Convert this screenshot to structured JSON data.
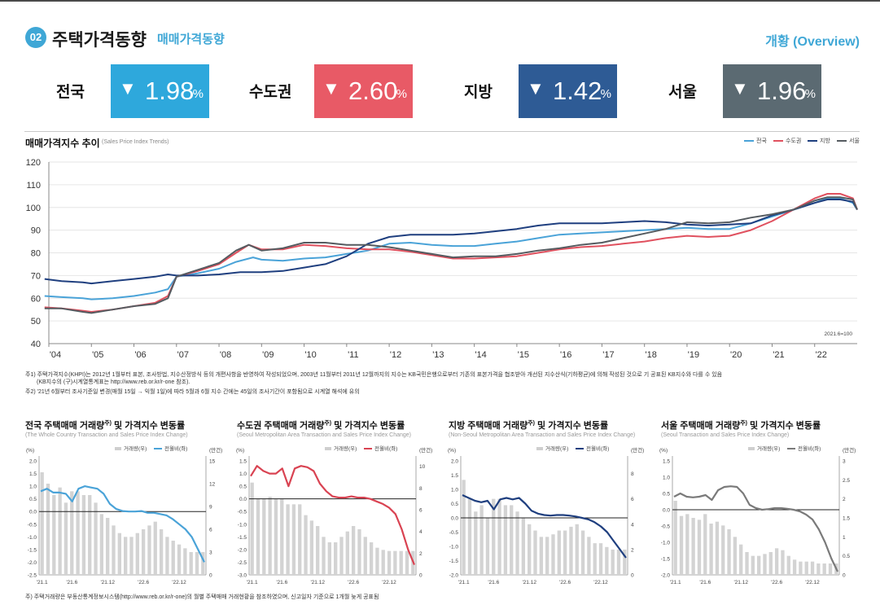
{
  "header": {
    "badge": "02",
    "title": "주택가격동향",
    "subtitle": "매매가격동향",
    "overview": "개황 (Overview)"
  },
  "kpis": [
    {
      "label": "전국",
      "arrow": "▼",
      "value": "1.98",
      "unit": "%",
      "color": "#2ea8dc"
    },
    {
      "label": "수도권",
      "arrow": "▼",
      "value": "2.60",
      "unit": "%",
      "color": "#e85a66"
    },
    {
      "label": "지방",
      "arrow": "▼",
      "value": "1.42",
      "unit": "%",
      "color": "#2e5b95"
    },
    {
      "label": "서울",
      "arrow": "▼",
      "value": "1.96",
      "unit": "%",
      "color": "#5b6a72"
    }
  ],
  "notes": {
    "note1a": "주1) 주택가격지수(KHPI)는 2012년 1월부터 표본, 조사방법, 지수산정방식 등의 개편사항을 반영하여 작성되었으며, 2003년 11월부터 2011년 12월까지의 지수는 KB국민은행으로부터 기존의 표본가격을 협조받아 개선된 지수산식(기하평균)에 의해 작성된 것으로 기 공표된 KB지수와 다를 수 있음",
    "note1b": "(KB지수의 (구)시계열통계표는 http://www.reb.or.kr/r-one 참조).",
    "note2": "주2) '21년 6월부터 조사기준일 변경(매월 15일 → 익월 1일)에 따라 5월과 6월 지수 간에는 45일의 조사기간이 포함됨으로 시계열 해석에 유의",
    "bottom": "주) 주택거래량은 부동산통계정보시스템(http://www.reb.or.kr/r-one)의 월별 주택매매 거래현황을 참조하였으며, 신고일자 기준으로 1개월 늦게 공표됨"
  },
  "chart_data": [
    {
      "type": "line",
      "title": "매매가격지수 추이",
      "subtitle": "(Sales Price Index Trends)",
      "annotation": "2021.6=100",
      "categories": [
        "'04",
        "'05",
        "'06",
        "'07",
        "'08",
        "'09",
        "'10",
        "'11",
        "'12",
        "'13",
        "'14",
        "'15",
        "'16",
        "'17",
        "'18",
        "'19",
        "'20",
        "'21",
        "'22"
      ],
      "ylim": [
        40,
        120
      ],
      "yticks": [
        40,
        50,
        60,
        70,
        80,
        90,
        100,
        110,
        120
      ],
      "x_range": [
        2004,
        2023
      ],
      "grid": true,
      "legend_position": "top-right",
      "series": [
        {
          "name": "전국",
          "color": "#4aa3d8",
          "x": [
            2003.9,
            2004.3,
            2004.8,
            2005.0,
            2005.5,
            2006.0,
            2006.5,
            2006.8,
            2007.0,
            2007.5,
            2008.0,
            2008.4,
            2008.8,
            2009.0,
            2009.5,
            2010.0,
            2010.5,
            2011.0,
            2011.5,
            2012.0,
            2012.5,
            2013.0,
            2013.5,
            2014.0,
            2014.5,
            2015.0,
            2015.5,
            2016.0,
            2016.5,
            2017.0,
            2017.5,
            2018.0,
            2018.5,
            2019.0,
            2019.5,
            2020.0,
            2020.5,
            2021.0,
            2021.5,
            2022.0,
            2022.3,
            2022.6,
            2022.9,
            2023.0
          ],
          "y": [
            61,
            60.5,
            60,
            59.5,
            60,
            61,
            62.5,
            64,
            69.5,
            71,
            73,
            76,
            78,
            77,
            76.5,
            77.5,
            78,
            79.5,
            81,
            84,
            84.5,
            83.5,
            83,
            83,
            84,
            85,
            86.5,
            88,
            88.5,
            89,
            89.5,
            90,
            90.5,
            91,
            90.5,
            90.5,
            93,
            96,
            99,
            102,
            104,
            104,
            102,
            99
          ]
        },
        {
          "name": "수도권",
          "color": "#e0515f",
          "x": [
            2003.9,
            2004.3,
            2004.8,
            2005.0,
            2005.5,
            2006.0,
            2006.5,
            2006.8,
            2007.0,
            2007.5,
            2008.0,
            2008.4,
            2008.7,
            2009.0,
            2009.5,
            2010.0,
            2010.5,
            2011.0,
            2011.5,
            2012.0,
            2012.5,
            2013.0,
            2013.5,
            2014.0,
            2014.5,
            2015.0,
            2015.5,
            2016.0,
            2016.5,
            2017.0,
            2017.5,
            2018.0,
            2018.5,
            2019.0,
            2019.5,
            2020.0,
            2020.5,
            2021.0,
            2021.5,
            2022.0,
            2022.3,
            2022.6,
            2022.9,
            2023.0
          ],
          "y": [
            56,
            55.5,
            54.5,
            54,
            55,
            56.5,
            58,
            61,
            69.5,
            72,
            75,
            80,
            83.5,
            81.5,
            81.5,
            83.5,
            83,
            82,
            81.5,
            81.5,
            80.5,
            79,
            77.5,
            77.5,
            78,
            78.5,
            80,
            81.5,
            82.5,
            83,
            84,
            85,
            86.5,
            87.5,
            87,
            87.5,
            90,
            94,
            99,
            104,
            106,
            106,
            104,
            99
          ]
        },
        {
          "name": "지방",
          "color": "#1f3f7f",
          "x": [
            2003.9,
            2004.3,
            2004.8,
            2005.0,
            2005.5,
            2006.0,
            2006.5,
            2006.8,
            2007.0,
            2007.5,
            2008.0,
            2008.5,
            2009.0,
            2009.5,
            2010.0,
            2010.5,
            2011.0,
            2011.5,
            2012.0,
            2012.5,
            2013.0,
            2013.5,
            2014.0,
            2014.5,
            2015.0,
            2015.5,
            2016.0,
            2016.5,
            2017.0,
            2017.5,
            2018.0,
            2018.5,
            2019.0,
            2019.5,
            2020.0,
            2020.5,
            2021.0,
            2021.5,
            2022.0,
            2022.3,
            2022.6,
            2022.9,
            2023.0
          ],
          "y": [
            68.5,
            67.5,
            67,
            66.5,
            67.5,
            68.5,
            69.5,
            70.5,
            70,
            70,
            70.5,
            71.5,
            71.5,
            72,
            73.5,
            75,
            78.5,
            84,
            87,
            88,
            88,
            88,
            88.5,
            89.5,
            90.5,
            92,
            93,
            93,
            93,
            93.5,
            94,
            93.5,
            92.5,
            92,
            92.5,
            93,
            96.5,
            99,
            102,
            103.5,
            103.5,
            102.5,
            99
          ]
        },
        {
          "name": "서울",
          "color": "#555b60",
          "x": [
            2003.9,
            2004.3,
            2004.8,
            2005.0,
            2005.5,
            2006.0,
            2006.5,
            2006.8,
            2007.0,
            2007.5,
            2008.0,
            2008.4,
            2008.7,
            2009.0,
            2009.5,
            2010.0,
            2010.5,
            2011.0,
            2011.5,
            2012.0,
            2012.5,
            2013.0,
            2013.5,
            2014.0,
            2014.5,
            2015.0,
            2015.5,
            2016.0,
            2016.5,
            2017.0,
            2017.5,
            2018.0,
            2018.5,
            2019.0,
            2019.5,
            2020.0,
            2020.5,
            2021.0,
            2021.5,
            2022.0,
            2022.3,
            2022.6,
            2022.9,
            2023.0
          ],
          "y": [
            55.5,
            55.5,
            54,
            53.5,
            55,
            56.5,
            57.5,
            60,
            69.5,
            72.5,
            75.5,
            81,
            83.5,
            81,
            82,
            84.5,
            84.5,
            83.5,
            83.5,
            82.5,
            81,
            79.5,
            78,
            78.5,
            78.5,
            79.5,
            81,
            82,
            83.5,
            84.5,
            86.5,
            88.5,
            90.5,
            93.5,
            93,
            93.5,
            95.5,
            97,
            99,
            103,
            104.5,
            104.5,
            103.5,
            99
          ]
        }
      ]
    },
    {
      "type": "bar",
      "title": "전국 주택매매 거래량",
      "title_sup": "주)",
      "title_rest": " 및 가격지수 변동률",
      "subtitle": "(The Whole Country Transaction and Sales Price Index Change)",
      "left_unit": "(%)",
      "right_unit": "(만건)",
      "legend": [
        "거래량(우)",
        "전월비(좌)"
      ],
      "line_color": "#4aa3d8",
      "categories": [
        "'21.1",
        "'21.6",
        "'21.12",
        "'22.6",
        "'22.12"
      ],
      "ylim_left": [
        -2.5,
        2.0
      ],
      "yticks_left": [
        -2.5,
        -2.0,
        -1.5,
        -1.0,
        -0.5,
        0.0,
        0.5,
        1.0,
        1.5,
        2.0
      ],
      "ylim_right": [
        0,
        15
      ],
      "yticks_right": [
        0,
        3,
        6,
        9,
        12,
        15
      ],
      "bars": [
        13.5,
        12,
        10.5,
        11.5,
        9.5,
        11,
        11,
        10.5,
        10.5,
        9.5,
        8,
        7.5,
        6.5,
        5.5,
        5,
        5,
        5.5,
        6,
        6.5,
        7,
        6,
        5,
        4.5,
        4,
        3.5,
        3,
        3,
        3
      ],
      "line": [
        0.8,
        0.9,
        0.75,
        0.75,
        0.7,
        0.4,
        0.9,
        1.0,
        0.95,
        0.9,
        0.7,
        0.3,
        0.1,
        0.02,
        0.0,
        0.0,
        0.02,
        -0.05,
        -0.05,
        -0.1,
        -0.15,
        -0.3,
        -0.5,
        -0.7,
        -1.0,
        -1.5,
        -2.0
      ]
    },
    {
      "type": "bar",
      "title": "수도권 주택매매 거래량",
      "title_sup": "주)",
      "title_rest": " 및 가격지수 변동률",
      "subtitle": "(Seoul Metropolitan Area Transaction and Sales Price Index Change)",
      "left_unit": "(%)",
      "right_unit": "(만건)",
      "legend": [
        "거래량(우)",
        "전월비(좌)"
      ],
      "line_color": "#d94352",
      "categories": [
        "'21.1",
        "'21.6",
        "'21.12",
        "'22.6",
        "'22.12"
      ],
      "ylim_left": [
        -3.0,
        1.5
      ],
      "yticks_left": [
        -3.0,
        -2.5,
        -2.0,
        -1.5,
        -1.0,
        -0.5,
        0.0,
        0.5,
        1.0,
        1.5
      ],
      "ylim_right": [
        0,
        10.5
      ],
      "yticks_right": [
        0,
        2,
        4,
        6,
        8,
        10
      ],
      "bars": [
        8.5,
        7,
        7,
        7.2,
        7,
        7,
        6.5,
        6.5,
        6.5,
        5.5,
        5,
        4.5,
        3.5,
        3,
        3,
        3.5,
        4,
        4.5,
        4.2,
        3.5,
        3,
        2.5,
        2.3,
        2.2,
        2.2,
        2.2,
        2.2,
        2.2
      ],
      "line": [
        0.9,
        1.3,
        1.1,
        1.0,
        1.0,
        1.2,
        0.5,
        1.2,
        1.3,
        1.25,
        1.1,
        0.6,
        0.3,
        0.1,
        0.05,
        0.05,
        0.1,
        0.05,
        0.05,
        0.0,
        -0.1,
        -0.2,
        -0.35,
        -0.6,
        -1.2,
        -2.0,
        -2.6
      ]
    },
    {
      "type": "bar",
      "title": "지방 주택매매 거래량",
      "title_sup": "주)",
      "title_rest": " 및 가격지수 변동률",
      "subtitle": "(Non-Seoul Metropolitan Area Transaction and Sales Price Index Change)",
      "left_unit": "(%)",
      "right_unit": "(만건)",
      "legend": [
        "거래량(우)",
        "전월비(좌)"
      ],
      "line_color": "#1f3f7f",
      "categories": [
        "'21.1",
        "'21.6",
        "'21.12",
        "'22.6",
        "'22.12"
      ],
      "ylim_left": [
        -2.0,
        2.0
      ],
      "yticks_left": [
        -2.0,
        -1.5,
        -1.0,
        -0.5,
        0.0,
        0.5,
        1.0,
        1.5,
        2.0
      ],
      "ylim_right": [
        0,
        9
      ],
      "yticks_right": [
        0,
        2,
        4,
        6,
        8
      ],
      "bars": [
        7.5,
        6,
        5,
        5.5,
        4.5,
        6,
        6,
        5.5,
        5.5,
        5,
        4.5,
        4,
        3.5,
        3,
        3,
        3.2,
        3.5,
        3.5,
        3.8,
        4,
        3.5,
        3,
        2.5,
        2.5,
        2.2,
        2,
        2,
        2
      ],
      "line": [
        0.8,
        0.7,
        0.6,
        0.55,
        0.6,
        0.3,
        0.65,
        0.7,
        0.65,
        0.7,
        0.5,
        0.25,
        0.15,
        0.1,
        0.08,
        0.1,
        0.1,
        0.08,
        0.05,
        0.0,
        -0.05,
        -0.15,
        -0.3,
        -0.5,
        -0.8,
        -1.1,
        -1.4
      ]
    },
    {
      "type": "bar",
      "title": "서울 주택매매 거래량",
      "title_sup": "주)",
      "title_rest": " 및 가격지수 변동률",
      "subtitle": "(Seoul Transaction and Sales Price Index Change)",
      "left_unit": "(%)",
      "right_unit": "(만건)",
      "legend": [
        "거래량(우)",
        "전월비(좌)"
      ],
      "line_color": "#7a7a7a",
      "categories": [
        "'21.1",
        "'21.6",
        "'21.12",
        "'22.6",
        "'22.12"
      ],
      "ylim_left": [
        -2.0,
        1.5
      ],
      "yticks_left": [
        -2.0,
        -1.5,
        -1.0,
        -0.5,
        0.0,
        0.5,
        1.0,
        1.5
      ],
      "ylim_right": [
        0,
        3.0
      ],
      "yticks_right": [
        0,
        0.5,
        1.0,
        1.5,
        2.0,
        2.5,
        3.0
      ],
      "bars": [
        1.95,
        1.55,
        1.6,
        1.5,
        1.45,
        1.6,
        1.35,
        1.4,
        1.3,
        1.2,
        1.0,
        0.8,
        0.6,
        0.5,
        0.5,
        0.55,
        0.6,
        0.7,
        0.65,
        0.5,
        0.4,
        0.35,
        0.35,
        0.35,
        0.3,
        0.3,
        0.3,
        0.3
      ],
      "line": [
        0.4,
        0.5,
        0.4,
        0.38,
        0.4,
        0.45,
        0.3,
        0.6,
        0.7,
        0.72,
        0.7,
        0.5,
        0.15,
        0.05,
        0.0,
        0.02,
        0.05,
        0.05,
        0.03,
        0.0,
        -0.05,
        -0.15,
        -0.3,
        -0.6,
        -1.0,
        -1.5,
        -1.9
      ]
    }
  ]
}
